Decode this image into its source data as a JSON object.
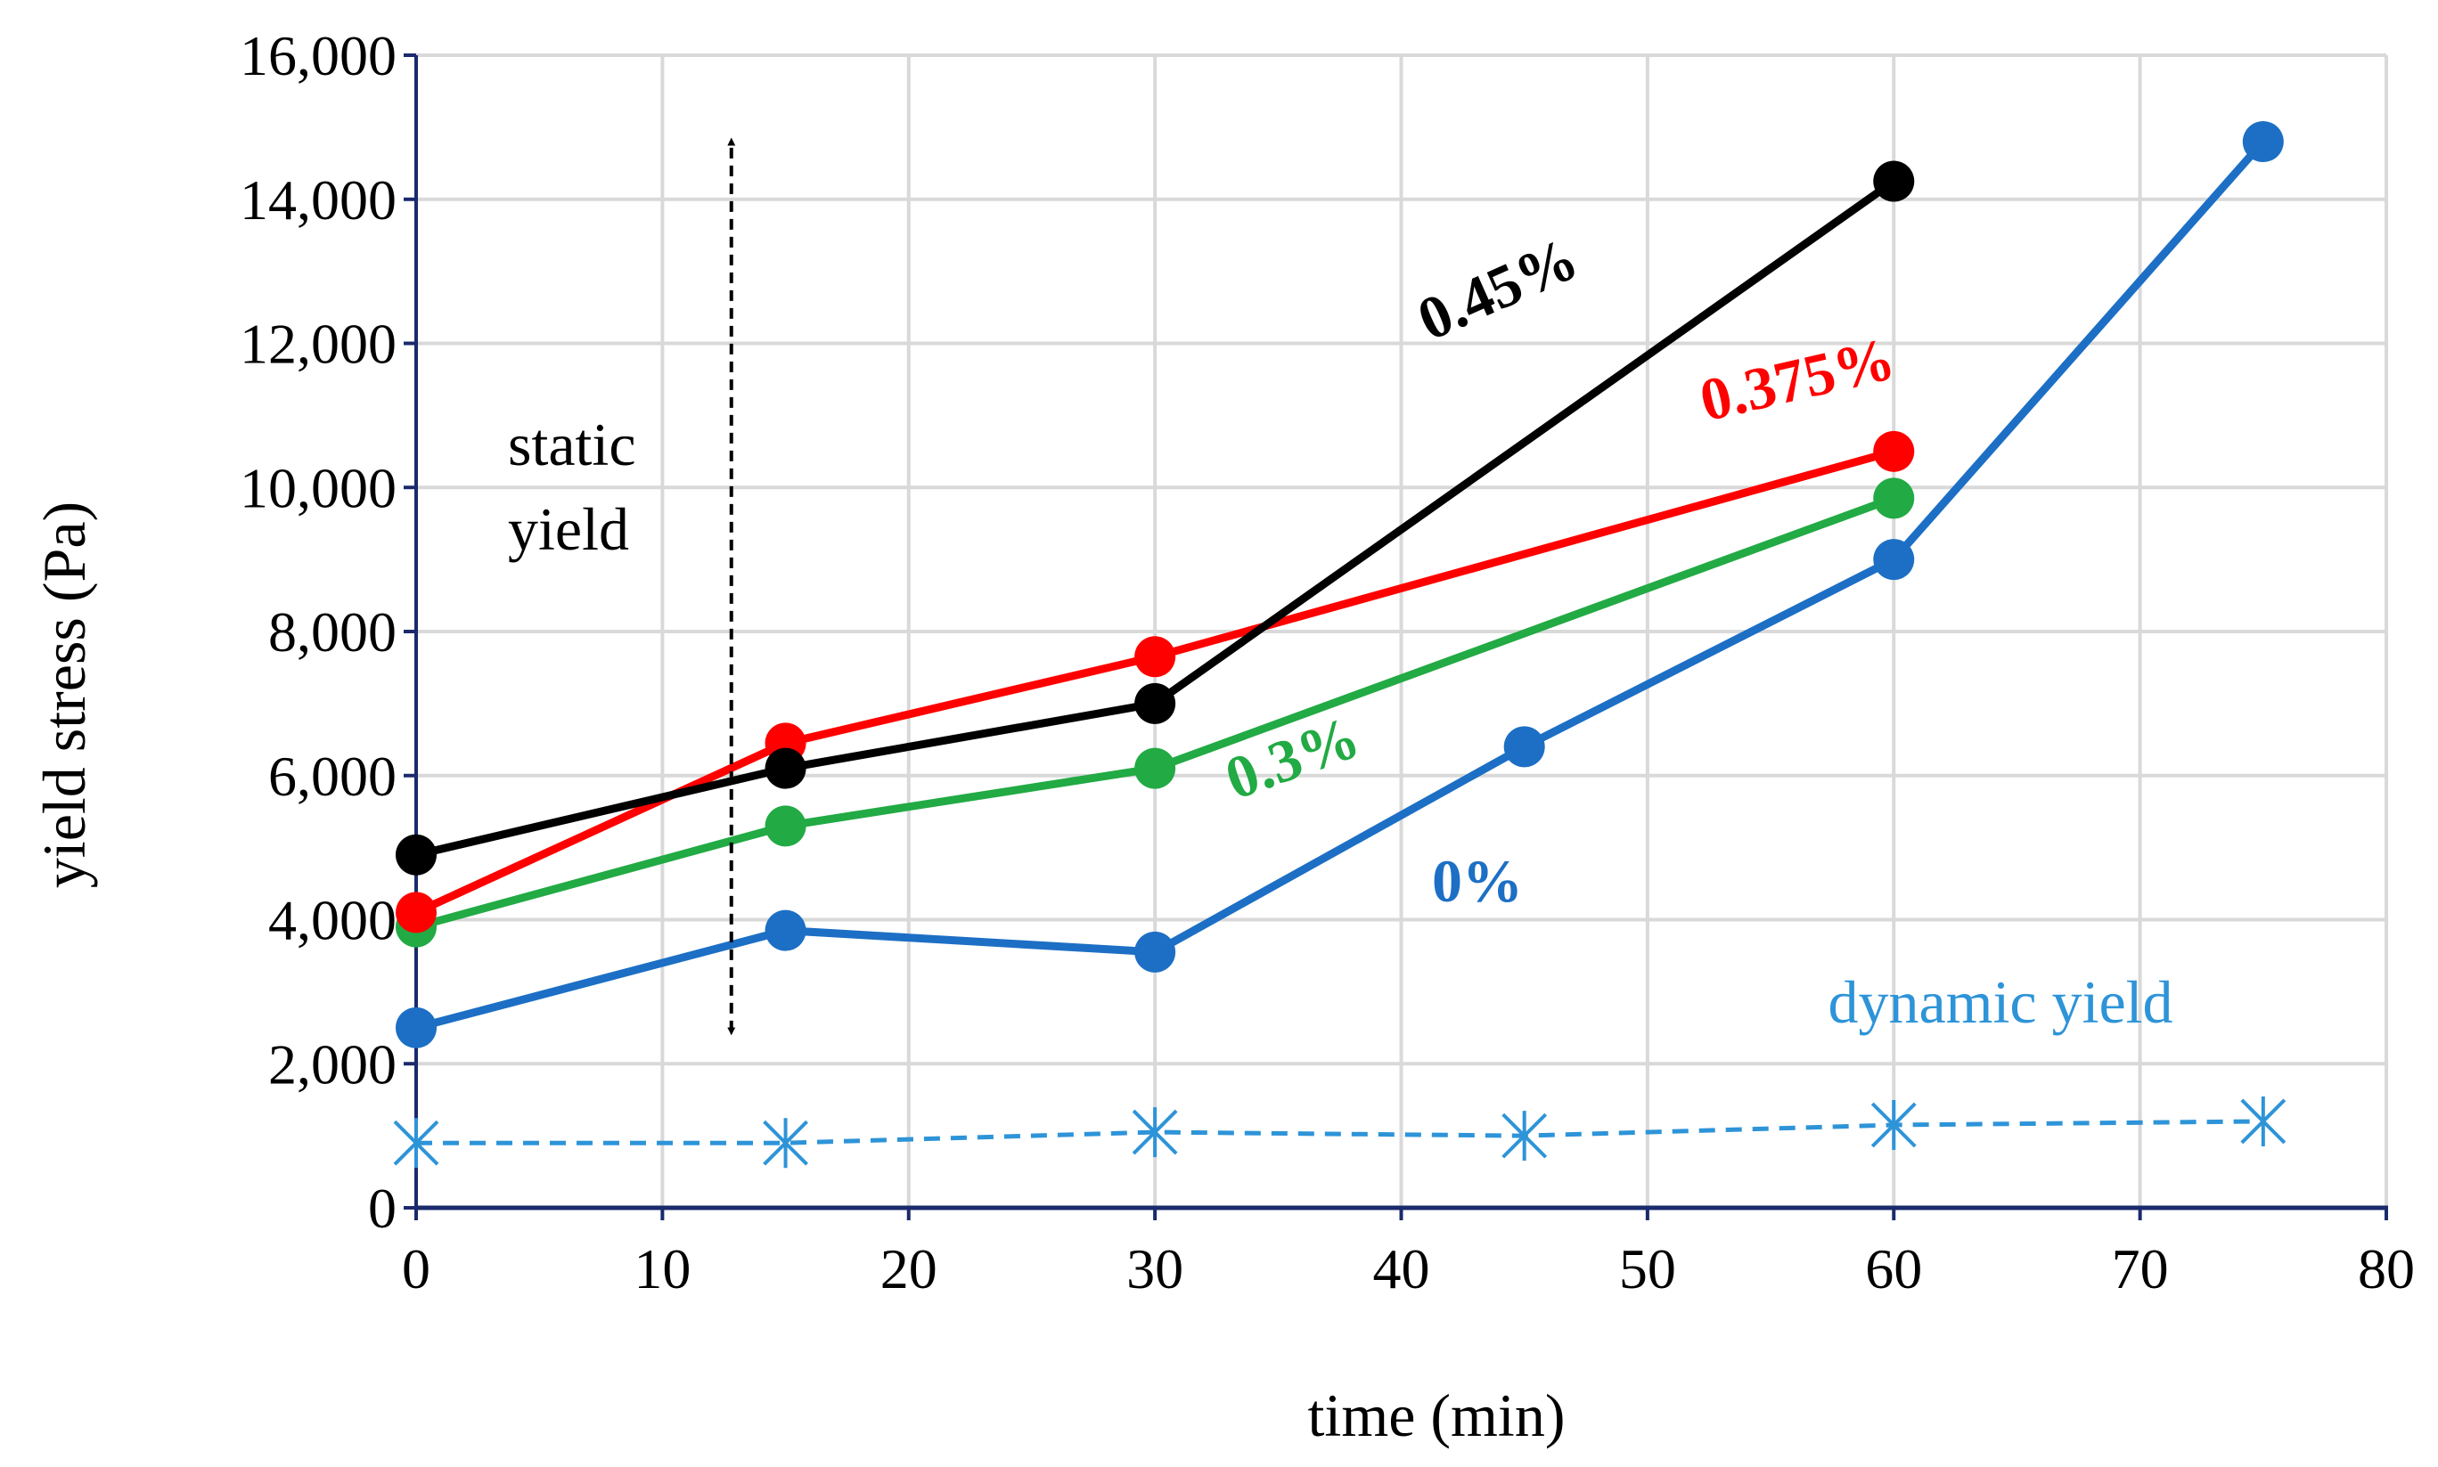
{
  "chart_data": {
    "type": "line",
    "title": "",
    "xlabel": "time (min)",
    "ylabel": "yield stress (Pa)",
    "xlim": [
      0,
      80
    ],
    "ylim": [
      0,
      16000
    ],
    "xticks": [
      0,
      10,
      20,
      30,
      40,
      50,
      60,
      70,
      80
    ],
    "yticks": [
      0,
      2000,
      4000,
      6000,
      8000,
      10000,
      12000,
      14000,
      16000
    ],
    "xtick_labels": [
      "0",
      "10",
      "20",
      "30",
      "40",
      "50",
      "60",
      "70",
      "80"
    ],
    "ytick_labels": [
      "0",
      "2,000",
      "4,000",
      "6,000",
      "8,000",
      "10,000",
      "12,000",
      "14,000",
      "16,000"
    ],
    "grid": true,
    "series": [
      {
        "name": "0.45%",
        "color": "#000000",
        "marker": "circle",
        "style": "solid",
        "x": [
          0,
          15,
          30,
          60
        ],
        "y": [
          4900,
          6100,
          7000,
          14250
        ]
      },
      {
        "name": "0.375%",
        "color": "#ff0000",
        "marker": "circle",
        "style": "solid",
        "x": [
          0,
          15,
          30,
          60
        ],
        "y": [
          4100,
          6450,
          7650,
          10500
        ]
      },
      {
        "name": "0.3%",
        "color": "#22aa44",
        "marker": "circle",
        "style": "solid",
        "x": [
          0,
          15,
          30,
          60
        ],
        "y": [
          3900,
          5300,
          6100,
          9850
        ]
      },
      {
        "name": "0%",
        "color": "#1c6fc4",
        "marker": "circle",
        "style": "solid",
        "x": [
          0,
          15,
          30,
          45,
          60,
          75
        ],
        "y": [
          2500,
          3850,
          3550,
          6400,
          9000,
          14800
        ]
      },
      {
        "name": "dynamic yield",
        "color": "#2e94d8",
        "marker": "x-star",
        "style": "dashed",
        "x": [
          0,
          15,
          30,
          45,
          60,
          75
        ],
        "y": [
          900,
          900,
          1050,
          1000,
          1150,
          1200
        ]
      }
    ],
    "annotations": {
      "label_045": "0.45%",
      "label_0375": "0.375%",
      "label_03": "0.3%",
      "label_0": "0%",
      "label_dynamic": "dynamic yield",
      "label_static_line1": "static",
      "label_static_line2": "yield"
    },
    "static_arrow": {
      "x": 12.8,
      "y_from": 2450,
      "y_to": 14800
    }
  }
}
